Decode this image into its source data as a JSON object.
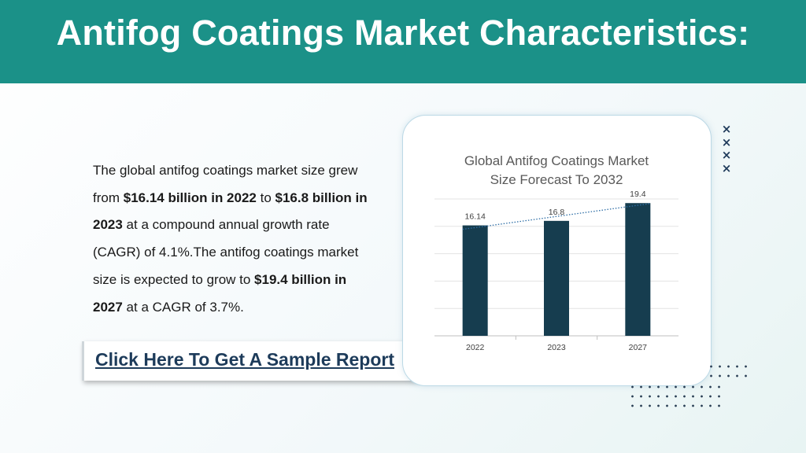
{
  "header": {
    "title": "Antifog Coatings Market Characteristics:"
  },
  "body": {
    "p1": "The global antifog coatings market size grew from ",
    "b1": "$16.14 billion in 2022",
    "p2": " to ",
    "b2": "$16.8 billion in 2023",
    "p3": " at a compound annual growth rate (CAGR) of 4.1%.The antifog coatings market size is expected to grow to ",
    "b3": "$19.4 billion in 2027",
    "p4": " at a CAGR of 3.7%."
  },
  "cta": {
    "label": "Click Here To Get A Sample Report"
  },
  "decor": {
    "x_marks": [
      "×",
      "×",
      "×",
      "×"
    ]
  },
  "chart_data": {
    "type": "bar",
    "title_lines": [
      "Global Antifog Coatings Market",
      "Size Forecast To 2032"
    ],
    "categories": [
      "2022",
      "2023",
      "2027"
    ],
    "values": [
      16.14,
      16.8,
      19.4
    ],
    "value_labels": [
      "16.14",
      "16.8",
      "19.4"
    ],
    "ylim": [
      0,
      20
    ],
    "grid": true,
    "trendline": "dotted",
    "colors": {
      "bar": "#163d4f",
      "trend": "#2e6ea6",
      "grid": "#e3e3e3",
      "axis": "#bfbfbf"
    }
  }
}
